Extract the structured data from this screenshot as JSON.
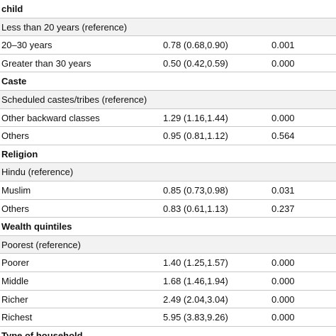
{
  "sections": [
    {
      "title": "child",
      "rows": [
        [
          "Less than 20 years (reference)"
        ],
        [
          "20–30 years",
          "0.78 (0.68,0.90)",
          "0.001"
        ],
        [
          "Greater than 30 years",
          "0.50 (0.42,0.59)",
          "0.000"
        ]
      ]
    },
    {
      "title": "Caste",
      "rows": [
        [
          "Scheduled castes/tribes (reference)"
        ],
        [
          "Other backward classes",
          "1.29 (1.16,1.44)",
          "0.000"
        ],
        [
          "Others",
          "0.95 (0.81,1.12)",
          "0.564"
        ]
      ]
    },
    {
      "title": "Religion",
      "rows": [
        [
          "Hindu (reference)"
        ],
        [
          "Muslim",
          "0.85 (0.73,0.98)",
          "0.031"
        ],
        [
          "Others",
          "0.83 (0.61,1.13)",
          "0.237"
        ]
      ]
    },
    {
      "title": "Wealth quintiles",
      "rows": [
        [
          "Poorest (reference)"
        ],
        [
          "Poorer",
          "1.40 (1.25,1.57)",
          "0.000"
        ],
        [
          "Middle",
          "1.68 (1.46,1.94)",
          "0.000"
        ],
        [
          "Richer",
          "2.49 (2.04,3.04)",
          "0.000"
        ],
        [
          "Richest",
          "5.95 (3.83,9.26)",
          "0.000"
        ]
      ]
    },
    {
      "title": "Type of household",
      "rows": []
    }
  ]
}
